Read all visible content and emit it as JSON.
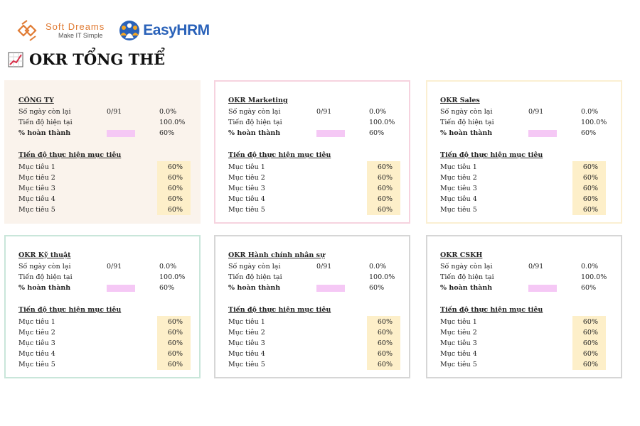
{
  "header": {
    "softdreams": {
      "name_first": "Soft",
      "name_second": "Dreams",
      "tagline": "Make IT Simple"
    },
    "easyhrm": {
      "name": "EasyHRM"
    }
  },
  "page_title": "OKR TỔNG THỂ",
  "labels": {
    "days_left": "Số ngày còn lại",
    "current_progress": "Tiến độ hiện tại",
    "percent_complete": "% hoàn thành",
    "goals_section": "Tiến độ thực hiện mục tiêu"
  },
  "colors": {
    "progress_bar": "#f5c8f5",
    "goal_highlight": "#fdefc9"
  },
  "panels": [
    {
      "title": "CÔNG TY",
      "border": "#faf3ec",
      "background": "#faf3ec",
      "days_left": "0/91",
      "days_left_pct": "0.0%",
      "current_progress": "100.0%",
      "percent_complete": "60%",
      "goals": [
        {
          "label": "Mục tiêu 1",
          "value": "60%"
        },
        {
          "label": "Mục tiêu 2",
          "value": "60%"
        },
        {
          "label": "Mục tiêu 3",
          "value": "60%"
        },
        {
          "label": "Mục tiêu 4",
          "value": "60%"
        },
        {
          "label": "Mục tiêu 5",
          "value": "60%"
        }
      ]
    },
    {
      "title": "OKR Marketing",
      "border": "#f6d3df",
      "background": "#ffffff",
      "days_left": "0/91",
      "days_left_pct": "0.0%",
      "current_progress": "100.0%",
      "percent_complete": "60%",
      "goals": [
        {
          "label": "Mục tiêu 1",
          "value": "60%"
        },
        {
          "label": "Mục tiêu 2",
          "value": "60%"
        },
        {
          "label": "Mục tiêu 3",
          "value": "60%"
        },
        {
          "label": "Mục tiêu 4",
          "value": "60%"
        },
        {
          "label": "Mục tiêu 5",
          "value": "60%"
        }
      ]
    },
    {
      "title": "OKR Sales",
      "border": "#fbefd2",
      "background": "#ffffff",
      "days_left": "0/91",
      "days_left_pct": "0.0%",
      "current_progress": "100.0%",
      "percent_complete": "60%",
      "goals": [
        {
          "label": "Mục tiêu 1",
          "value": "60%"
        },
        {
          "label": "Mục tiêu 2",
          "value": "60%"
        },
        {
          "label": "Mục tiêu 3",
          "value": "60%"
        },
        {
          "label": "Mục tiêu 4",
          "value": "60%"
        },
        {
          "label": "Mục tiêu 5",
          "value": "60%"
        }
      ]
    },
    {
      "title": "OKR Kỹ thuật",
      "border": "#c9e6da",
      "background": "#ffffff",
      "days_left": "0/91",
      "days_left_pct": "0.0%",
      "current_progress": "100.0%",
      "percent_complete": "60%",
      "goals": [
        {
          "label": "Mục tiêu 1",
          "value": "60%"
        },
        {
          "label": "Mục tiêu 2",
          "value": "60%"
        },
        {
          "label": "Mục tiêu 3",
          "value": "60%"
        },
        {
          "label": "Mục tiêu 4",
          "value": "60%"
        },
        {
          "label": "Mục tiêu 5",
          "value": "60%"
        }
      ]
    },
    {
      "title": "OKR Hành chính nhân sự",
      "border": "#d6d6d6",
      "background": "#ffffff",
      "days_left": "0/91",
      "days_left_pct": "0.0%",
      "current_progress": "100.0%",
      "percent_complete": "60%",
      "goals": [
        {
          "label": "Mục tiêu 1",
          "value": "60%"
        },
        {
          "label": "Mục tiêu 2",
          "value": "60%"
        },
        {
          "label": "Mục tiêu 3",
          "value": "60%"
        },
        {
          "label": "Mục tiêu 4",
          "value": "60%"
        },
        {
          "label": "Mục tiêu 5",
          "value": "60%"
        }
      ]
    },
    {
      "title": "OKR CSKH",
      "border": "#d6d6d6",
      "background": "#ffffff",
      "days_left": "0/91",
      "days_left_pct": "0.0%",
      "current_progress": "100.0%",
      "percent_complete": "60%",
      "goals": [
        {
          "label": "Mục tiêu 1",
          "value": "60%"
        },
        {
          "label": "Mục tiêu 2",
          "value": "60%"
        },
        {
          "label": "Mục tiêu 3",
          "value": "60%"
        },
        {
          "label": "Mục tiêu 4",
          "value": "60%"
        },
        {
          "label": "Mục tiêu 5",
          "value": "60%"
        }
      ]
    }
  ]
}
